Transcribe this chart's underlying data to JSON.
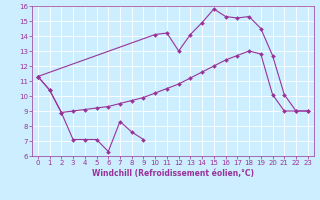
{
  "xlabel": "Windchill (Refroidissement éolien,°C)",
  "xlim": [
    -0.5,
    23.5
  ],
  "ylim": [
    6,
    16
  ],
  "xticks": [
    0,
    1,
    2,
    3,
    4,
    5,
    6,
    7,
    8,
    9,
    10,
    11,
    12,
    13,
    14,
    15,
    16,
    17,
    18,
    19,
    20,
    21,
    22,
    23
  ],
  "yticks": [
    6,
    7,
    8,
    9,
    10,
    11,
    12,
    13,
    14,
    15,
    16
  ],
  "bg_color": "#cceeff",
  "line_color": "#993399",
  "grid_color": "#ffffff",
  "series": [
    {
      "x": [
        0,
        1,
        2,
        3,
        4,
        5,
        6,
        7,
        8,
        9,
        10,
        11,
        12,
        13,
        14,
        15,
        16,
        17,
        18,
        19,
        20,
        21,
        22,
        23
      ],
      "y": [
        11.3,
        10.4,
        8.9,
        9.0,
        9.1,
        9.2,
        9.3,
        9.5,
        9.7,
        9.9,
        10.2,
        10.5,
        10.8,
        11.2,
        11.6,
        12.0,
        12.4,
        12.7,
        13.0,
        12.8,
        10.1,
        9.0,
        9.0,
        9.0
      ]
    },
    {
      "x": [
        0,
        10,
        11,
        12,
        13,
        14,
        15,
        16,
        17,
        18,
        19,
        20,
        21,
        22,
        23
      ],
      "y": [
        11.3,
        14.1,
        14.2,
        13.0,
        14.1,
        14.9,
        15.8,
        15.3,
        15.2,
        15.3,
        14.5,
        12.7,
        10.1,
        9.0,
        9.0
      ]
    },
    {
      "x": [
        0,
        1,
        2,
        3,
        4,
        5,
        6,
        7,
        8,
        9
      ],
      "y": [
        11.3,
        10.4,
        8.9,
        7.1,
        7.1,
        7.1,
        6.3,
        8.3,
        7.6,
        7.1
      ]
    }
  ]
}
